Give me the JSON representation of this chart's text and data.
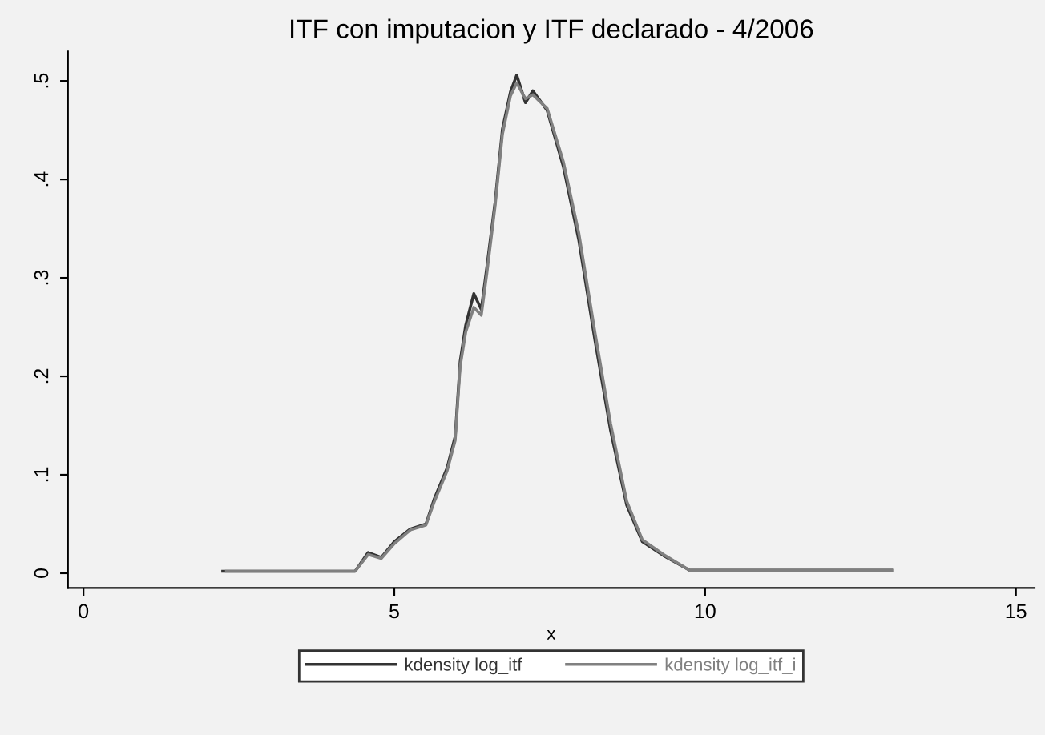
{
  "chart_data": {
    "type": "line",
    "title": "ITF con imputacion y ITF declarado - 4/2006",
    "xlabel": "x",
    "xlim": [
      -0.25,
      15.3
    ],
    "ylim": [
      -0.015,
      0.53
    ],
    "xticks": [
      0,
      5,
      10,
      15
    ],
    "yticks": [
      {
        "value": 0,
        "label": "0"
      },
      {
        "value": 0.1,
        "label": ".1"
      },
      {
        "value": 0.2,
        "label": ".2"
      },
      {
        "value": 0.3,
        "label": ".3"
      },
      {
        "value": 0.4,
        "label": ".4"
      },
      {
        "value": 0.5,
        "label": ".5"
      }
    ],
    "grid": false,
    "legend": "bottom",
    "line_style": "solid",
    "marker": "none",
    "series": [
      {
        "name": "kdensity log_itf",
        "color": "#333333",
        "x": [
          2.24,
          4.37,
          4.58,
          4.79,
          5.0,
          5.26,
          5.51,
          5.64,
          5.85,
          5.98,
          6.06,
          6.15,
          6.28,
          6.4,
          6.49,
          6.62,
          6.74,
          6.87,
          6.97,
          7.11,
          7.23,
          7.46,
          7.72,
          7.97,
          8.23,
          8.48,
          8.74,
          8.99,
          9.33,
          9.75,
          13.0
        ],
        "values": [
          0.002,
          0.002,
          0.021,
          0.016,
          0.032,
          0.045,
          0.05,
          0.075,
          0.107,
          0.139,
          0.215,
          0.252,
          0.284,
          0.268,
          0.311,
          0.376,
          0.451,
          0.489,
          0.506,
          0.478,
          0.49,
          0.47,
          0.413,
          0.338,
          0.236,
          0.145,
          0.069,
          0.032,
          0.018,
          0.003,
          0.003
        ]
      },
      {
        "name": "kdensity log_itf_i",
        "color": "#808080",
        "x": [
          2.3,
          4.37,
          4.58,
          4.79,
          5.0,
          5.26,
          5.51,
          5.64,
          5.85,
          5.98,
          6.06,
          6.15,
          6.28,
          6.4,
          6.49,
          6.62,
          6.74,
          6.87,
          6.97,
          7.11,
          7.23,
          7.46,
          7.72,
          7.97,
          8.23,
          8.48,
          8.74,
          8.99,
          9.33,
          9.75,
          13.0
        ],
        "values": [
          0.002,
          0.002,
          0.019,
          0.015,
          0.03,
          0.044,
          0.049,
          0.072,
          0.104,
          0.135,
          0.21,
          0.245,
          0.27,
          0.262,
          0.305,
          0.372,
          0.446,
          0.485,
          0.498,
          0.482,
          0.486,
          0.472,
          0.418,
          0.345,
          0.244,
          0.152,
          0.073,
          0.034,
          0.019,
          0.003,
          0.003
        ]
      }
    ]
  }
}
